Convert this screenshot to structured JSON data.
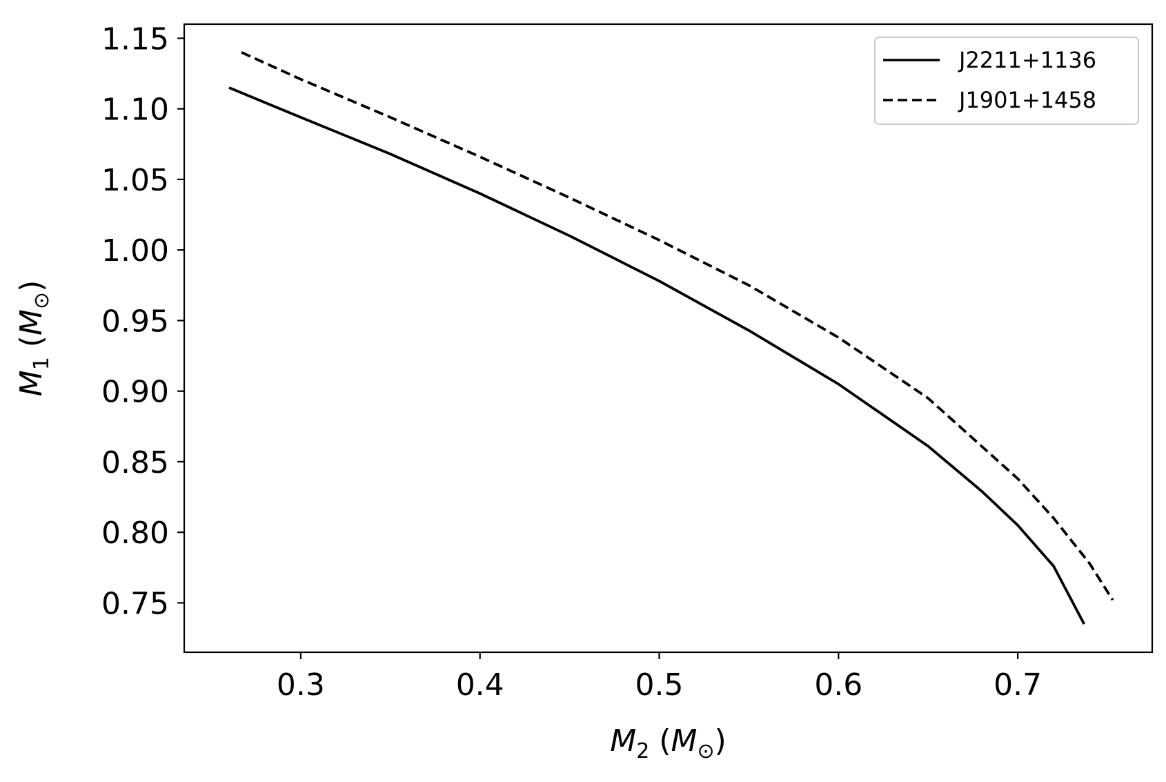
{
  "chart_data": {
    "type": "line",
    "xlabel": {
      "main": "M",
      "sub": "2",
      "unit": "M",
      "sym": "⊙"
    },
    "ylabel": {
      "main": "M",
      "sub": "1",
      "unit": "M",
      "sym": "⊙"
    },
    "xlim": [
      0.235,
      0.775
    ],
    "ylim": [
      0.715,
      1.16
    ],
    "xticks": [
      0.3,
      0.4,
      0.5,
      0.6,
      0.7
    ],
    "xtick_labels": [
      "0.3",
      "0.4",
      "0.5",
      "0.6",
      "0.7"
    ],
    "yticks": [
      0.75,
      0.8,
      0.85,
      0.9,
      0.95,
      1.0,
      1.05,
      1.1,
      1.15
    ],
    "ytick_labels": [
      "0.75",
      "0.80",
      "0.85",
      "0.90",
      "0.95",
      "1.00",
      "1.05",
      "1.10",
      "1.15"
    ],
    "grid": false,
    "legend_position": "top-right",
    "series": [
      {
        "name": "J2211+1136",
        "style": "solid",
        "color": "#000000",
        "x": [
          0.26,
          0.3,
          0.35,
          0.4,
          0.45,
          0.5,
          0.55,
          0.6,
          0.65,
          0.68,
          0.7,
          0.72,
          0.737
        ],
        "y": [
          1.115,
          1.094,
          1.068,
          1.04,
          1.01,
          0.978,
          0.943,
          0.905,
          0.861,
          0.829,
          0.805,
          0.776,
          0.735
        ]
      },
      {
        "name": "J1901+1458",
        "style": "dashed",
        "color": "#000000",
        "x": [
          0.267,
          0.3,
          0.35,
          0.4,
          0.45,
          0.5,
          0.55,
          0.6,
          0.65,
          0.7,
          0.72,
          0.74,
          0.753
        ],
        "y": [
          1.14,
          1.121,
          1.094,
          1.066,
          1.037,
          1.007,
          0.975,
          0.938,
          0.895,
          0.838,
          0.81,
          0.778,
          0.752
        ]
      }
    ]
  }
}
